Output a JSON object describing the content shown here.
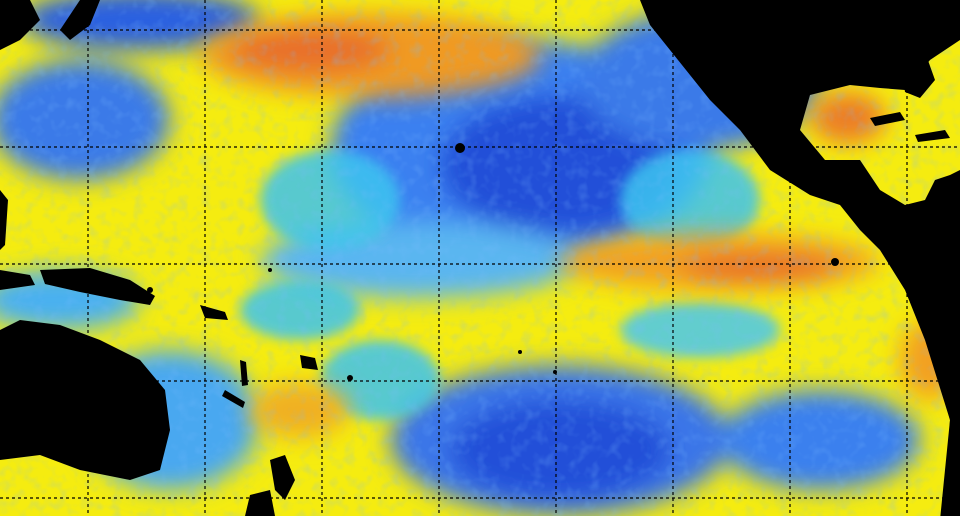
{
  "map": {
    "projection": "equirectangular",
    "graticule": {
      "style": "dotted",
      "color": "#000000"
    },
    "palette": {
      "land": "#000000",
      "deep_blue": "#1f4fd8",
      "blue": "#3a7af0",
      "light_blue": "#3cc4f0",
      "yellow": "#f7f20a",
      "orange": "#f2a020",
      "red_orange": "#e8682a"
    }
  }
}
